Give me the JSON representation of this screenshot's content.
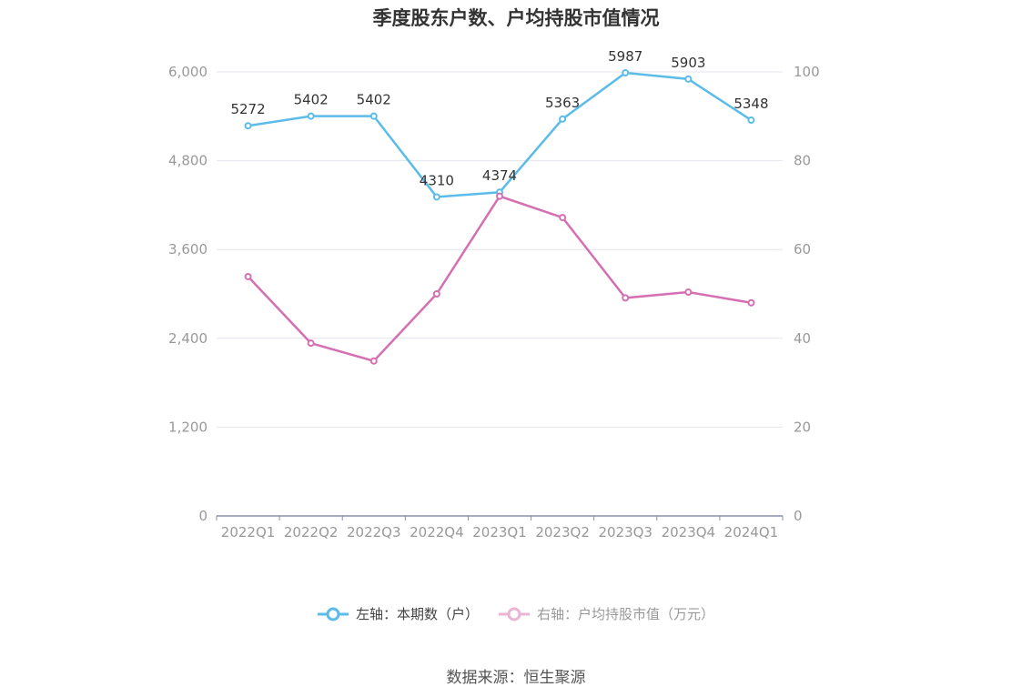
{
  "title": "季度股东户数、户均持股市值情况",
  "source": "数据来源：恒生聚源",
  "colors": {
    "left_series": "#5bbcea",
    "right_series": "#d66fb2",
    "grid": "#e3e6ee",
    "axis": "#8a8fa8"
  },
  "legend": {
    "left": "左轴：本期数（户）",
    "right": "右轴：户均持股市值（万元）"
  },
  "chart_data": {
    "type": "line",
    "categories": [
      "2022Q1",
      "2022Q2",
      "2022Q3",
      "2022Q4",
      "2023Q1",
      "2023Q2",
      "2023Q3",
      "2023Q4",
      "2024Q1"
    ],
    "y_left": {
      "ticks": [
        "0",
        "1,200",
        "2,400",
        "3,600",
        "4,800",
        "6,000"
      ],
      "ylim": [
        0,
        6000
      ]
    },
    "y_right": {
      "ticks": [
        "0",
        "20",
        "40",
        "60",
        "80",
        "100"
      ],
      "ylim": [
        0,
        100
      ]
    },
    "grid": true,
    "legend_position": "bottom",
    "series": [
      {
        "name": "左轴：本期数（户）",
        "axis": "left",
        "values": [
          5272,
          5402,
          5402,
          4310,
          4374,
          5363,
          5987,
          5903,
          5348
        ],
        "labels": [
          "5272",
          "5402",
          "5402",
          "4310",
          "4374",
          "5363",
          "5987",
          "5903",
          "5348"
        ]
      },
      {
        "name": "右轴：户均持股市值（万元）",
        "axis": "right",
        "values": [
          53.9,
          38.9,
          34.9,
          50.0,
          72.0,
          67.2,
          49.1,
          50.4,
          48.0
        ]
      }
    ]
  }
}
